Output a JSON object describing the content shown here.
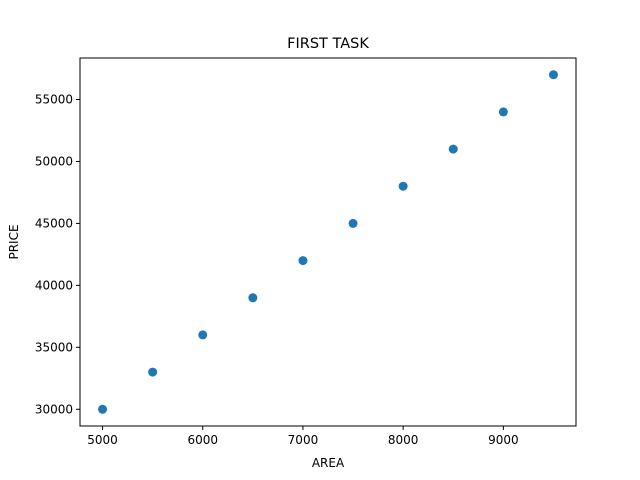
{
  "chart_data": {
    "type": "scatter",
    "title": "FIRST TASK",
    "xlabel": "AREA",
    "ylabel": "PRICE",
    "xlim": [
      4775,
      9725
    ],
    "ylim": [
      28650,
      58350
    ],
    "xticks": [
      5000,
      6000,
      7000,
      8000,
      9000
    ],
    "yticks": [
      30000,
      35000,
      40000,
      45000,
      50000,
      55000
    ],
    "grid": false,
    "marker_color": "#1f77b4",
    "series": [
      {
        "x": [
          5000,
          5500,
          6000,
          6500,
          7000,
          7500,
          8000,
          8500,
          9000,
          9500
        ],
        "y": [
          30000,
          33000,
          36000,
          39000,
          42000,
          45000,
          48000,
          51000,
          54000,
          57000
        ]
      }
    ]
  }
}
